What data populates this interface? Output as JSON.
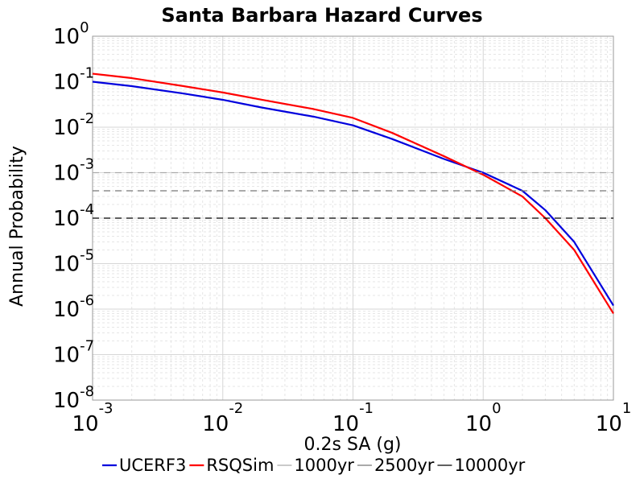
{
  "chart_data": {
    "type": "line",
    "title": "Santa Barbara Hazard Curves",
    "xlabel": "0.2s SA (g)",
    "ylabel": "Annual Probability",
    "x_scale": "log",
    "y_scale": "log",
    "xlim": [
      0.001,
      10
    ],
    "ylim": [
      1e-08,
      1
    ],
    "grid": true,
    "legend_position": "bottom",
    "x_ticks": [
      {
        "base": "10",
        "exp": "-3",
        "value": 0.001
      },
      {
        "base": "10",
        "exp": "-2",
        "value": 0.01
      },
      {
        "base": "10",
        "exp": "-1",
        "value": 0.1
      },
      {
        "base": "10",
        "exp": "0",
        "value": 1
      },
      {
        "base": "10",
        "exp": "1",
        "value": 10
      }
    ],
    "y_ticks": [
      {
        "base": "10",
        "exp": "0",
        "value": 1
      },
      {
        "base": "10",
        "exp": "-1",
        "value": 0.1
      },
      {
        "base": "10",
        "exp": "-2",
        "value": 0.01
      },
      {
        "base": "10",
        "exp": "-3",
        "value": 0.001
      },
      {
        "base": "10",
        "exp": "-4",
        "value": 0.0001
      },
      {
        "base": "10",
        "exp": "-5",
        "value": 1e-05
      },
      {
        "base": "10",
        "exp": "-6",
        "value": 1e-06
      },
      {
        "base": "10",
        "exp": "-7",
        "value": 1e-07
      },
      {
        "base": "10",
        "exp": "-8",
        "value": 1e-08
      }
    ],
    "series": [
      {
        "name": "UCERF3",
        "color": "#0000dd",
        "x": [
          0.001,
          0.002,
          0.005,
          0.01,
          0.02,
          0.05,
          0.1,
          0.2,
          0.5,
          1,
          2,
          3,
          5,
          10
        ],
        "y": [
          0.1,
          0.08,
          0.055,
          0.04,
          0.027,
          0.017,
          0.011,
          0.0055,
          0.002,
          0.001,
          0.0004,
          0.00015,
          3e-05,
          1.2e-06
        ]
      },
      {
        "name": "RSQSim",
        "color": "#ff0000",
        "x": [
          0.001,
          0.002,
          0.005,
          0.01,
          0.02,
          0.05,
          0.1,
          0.2,
          0.5,
          1,
          2,
          3,
          5,
          10
        ],
        "y": [
          0.15,
          0.12,
          0.08,
          0.058,
          0.04,
          0.025,
          0.016,
          0.0075,
          0.0023,
          0.0009,
          0.0003,
          0.0001,
          2e-05,
          8e-07
        ]
      },
      {
        "name": "1000yr",
        "color": "#aaaaaa",
        "dashed": true,
        "x": [
          0.001,
          10
        ],
        "y": [
          0.001,
          0.001
        ]
      },
      {
        "name": "2500yr",
        "color": "#777777",
        "dashed": true,
        "x": [
          0.001,
          10
        ],
        "y": [
          0.0004,
          0.0004
        ]
      },
      {
        "name": "10000yr",
        "color": "#000000",
        "dashed": true,
        "x": [
          0.001,
          10
        ],
        "y": [
          0.0001,
          0.0001
        ]
      }
    ]
  }
}
